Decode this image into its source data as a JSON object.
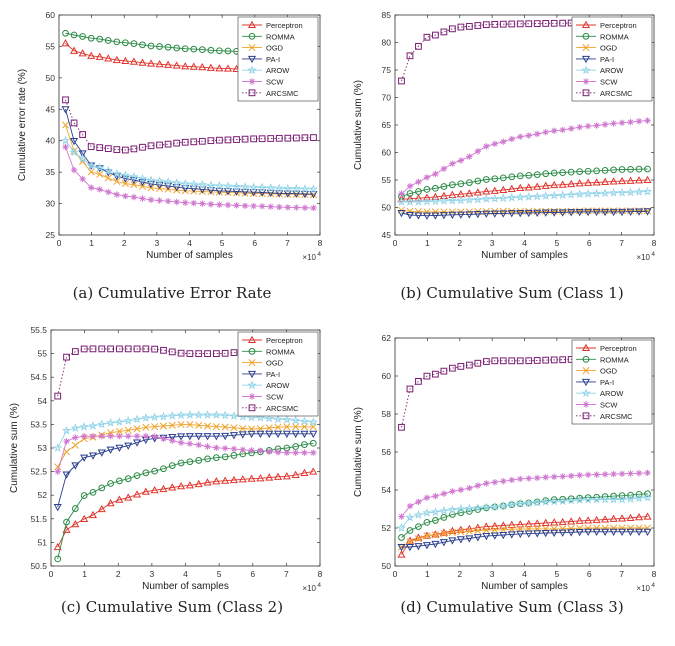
{
  "legend_labels": [
    "Perceptron",
    "ROMMA",
    "OGD",
    "PA-I",
    "AROW",
    "SCW",
    "ARCSMC"
  ],
  "series_colors": {
    "Perceptron": "#e0342c",
    "ROMMA": "#2a8a45",
    "OGD": "#f0a22a",
    "PA-I": "#2a3e8e",
    "AROW": "#8fd3e8",
    "SCW": "#d078d0",
    "ARCSMC": "#7a1e72"
  },
  "chart_data": [
    {
      "type": "line",
      "caption": "(a) Cumulative Error Rate",
      "xlabel": "Number of samples",
      "ylabel": "Cumulative error rate (%)",
      "x_exponent": "×10",
      "x_exponent_power": "4",
      "xlim": [
        0,
        8
      ],
      "ylim": [
        25,
        60
      ],
      "xticks": [
        0,
        1,
        2,
        3,
        4,
        5,
        6,
        7,
        8
      ],
      "yticks": [
        25,
        30,
        35,
        40,
        45,
        50,
        55,
        60
      ],
      "legend_position": "top-right",
      "series": [
        {
          "name": "Perceptron",
          "x": [
            0.2,
            0.5,
            1,
            2,
            3,
            4,
            5,
            6,
            7,
            7.8
          ],
          "values": [
            55.5,
            54.2,
            53.5,
            52.7,
            52.2,
            51.8,
            51.5,
            51.3,
            51.1,
            51.0
          ]
        },
        {
          "name": "ROMMA",
          "x": [
            0.2,
            0.5,
            1,
            2,
            3,
            4,
            5,
            6,
            7,
            7.8
          ],
          "values": [
            57.1,
            56.8,
            56.3,
            55.6,
            55.0,
            54.6,
            54.3,
            54.1,
            53.9,
            53.8
          ]
        },
        {
          "name": "OGD",
          "x": [
            0.2,
            0.5,
            1,
            2,
            3,
            4,
            5,
            6,
            7,
            7.8
          ],
          "values": [
            42.5,
            38.0,
            35.0,
            33.2,
            32.4,
            32.0,
            31.8,
            31.6,
            31.5,
            31.4
          ]
        },
        {
          "name": "PA-I",
          "x": [
            0.2,
            0.5,
            1,
            2,
            3,
            4,
            5,
            6,
            7,
            7.8
          ],
          "values": [
            45.0,
            39.5,
            36.0,
            34.0,
            33.0,
            32.4,
            32.0,
            31.8,
            31.6,
            31.5
          ]
        },
        {
          "name": "AROW",
          "x": [
            0.2,
            0.5,
            1,
            2,
            3,
            4,
            5,
            6,
            7,
            7.8
          ],
          "values": [
            40.0,
            38.0,
            36.0,
            34.5,
            33.6,
            33.1,
            32.8,
            32.6,
            32.4,
            32.3
          ]
        },
        {
          "name": "SCW",
          "x": [
            0.2,
            0.5,
            1,
            2,
            3,
            4,
            5,
            6,
            7,
            7.8
          ],
          "values": [
            39.0,
            35.0,
            32.5,
            31.2,
            30.5,
            30.1,
            29.8,
            29.6,
            29.4,
            29.3
          ]
        },
        {
          "name": "ARCSMC",
          "x": [
            0.2,
            0.5,
            1,
            2,
            3,
            4,
            5,
            6,
            7,
            7.8
          ],
          "values": [
            46.5,
            42.5,
            39.0,
            38.5,
            39.3,
            39.8,
            40.1,
            40.3,
            40.4,
            40.5
          ]
        }
      ]
    },
    {
      "type": "line",
      "caption": "(b) Cumulative Sum (Class 1)",
      "xlabel": "Number of samples",
      "ylabel": "Cumulative sum (%)",
      "x_exponent": "×10",
      "x_exponent_power": "4",
      "xlim": [
        0,
        8
      ],
      "ylim": [
        45,
        85
      ],
      "xticks": [
        0,
        1,
        2,
        3,
        4,
        5,
        6,
        7,
        8
      ],
      "yticks": [
        45,
        50,
        55,
        60,
        65,
        70,
        75,
        80,
        85
      ],
      "legend_position": "top-right",
      "series": [
        {
          "name": "Perceptron",
          "x": [
            0.2,
            0.5,
            1,
            2,
            3,
            4,
            5,
            6,
            7,
            7.8
          ],
          "values": [
            51.5,
            51.6,
            51.8,
            52.4,
            53.0,
            53.6,
            54.1,
            54.5,
            54.8,
            55.0
          ]
        },
        {
          "name": "ROMMA",
          "x": [
            0.2,
            0.5,
            1,
            2,
            3,
            4,
            5,
            6,
            7,
            7.8
          ],
          "values": [
            52.0,
            52.6,
            53.3,
            54.3,
            55.2,
            55.8,
            56.3,
            56.6,
            56.9,
            57.0
          ]
        },
        {
          "name": "OGD",
          "x": [
            0.2,
            0.5,
            1,
            2,
            3,
            4,
            5,
            6,
            7,
            7.8
          ],
          "values": [
            49.5,
            49.3,
            49.2,
            49.2,
            49.3,
            49.3,
            49.3,
            49.4,
            49.4,
            49.4
          ]
        },
        {
          "name": "PA-I",
          "x": [
            0.2,
            0.5,
            1,
            2,
            3,
            4,
            5,
            6,
            7,
            7.8
          ],
          "values": [
            49.0,
            48.6,
            48.5,
            48.7,
            48.9,
            49.0,
            49.1,
            49.2,
            49.2,
            49.3
          ]
        },
        {
          "name": "AROW",
          "x": [
            0.2,
            0.5,
            1,
            2,
            3,
            4,
            5,
            6,
            7,
            7.8
          ],
          "values": [
            51.0,
            51.0,
            51.1,
            51.3,
            51.6,
            51.9,
            52.2,
            52.5,
            52.7,
            52.9
          ]
        },
        {
          "name": "SCW",
          "x": [
            0.2,
            0.5,
            1,
            2,
            3,
            4,
            5,
            6,
            7,
            7.8
          ],
          "values": [
            52.5,
            54.0,
            55.5,
            58.5,
            61.5,
            63.0,
            64.0,
            64.8,
            65.4,
            65.8
          ]
        },
        {
          "name": "ARCSMC",
          "x": [
            0.2,
            0.5,
            1,
            2,
            3,
            4,
            5,
            6,
            7,
            7.8
          ],
          "values": [
            73.0,
            78.0,
            81.0,
            82.8,
            83.3,
            83.4,
            83.5,
            83.6,
            83.7,
            83.8
          ]
        }
      ]
    },
    {
      "type": "line",
      "caption": "(c) Cumulative Sum (Class 2)",
      "xlabel": "Number of samples",
      "ylabel": "Cumulative sum (%)",
      "x_exponent": "×10",
      "x_exponent_power": "4",
      "xlim": [
        0,
        8
      ],
      "ylim": [
        50.5,
        55.5
      ],
      "xticks": [
        0,
        1,
        2,
        3,
        4,
        5,
        6,
        7,
        8
      ],
      "yticks": [
        50.5,
        51,
        51.5,
        52,
        52.5,
        53,
        53.5,
        54,
        54.5,
        55,
        55.5
      ],
      "legend_position": "top-right",
      "series": [
        {
          "name": "Perceptron",
          "x": [
            0.2,
            0.5,
            1,
            2,
            3,
            4,
            5,
            6,
            7,
            7.8
          ],
          "values": [
            50.9,
            51.3,
            51.5,
            51.9,
            52.1,
            52.2,
            52.3,
            52.35,
            52.4,
            52.5
          ]
        },
        {
          "name": "ROMMA",
          "x": [
            0.2,
            0.5,
            1,
            2,
            3,
            4,
            5,
            6,
            7,
            7.8
          ],
          "values": [
            50.65,
            51.5,
            52.0,
            52.3,
            52.5,
            52.7,
            52.8,
            52.9,
            53.0,
            53.1
          ]
        },
        {
          "name": "OGD",
          "x": [
            0.2,
            0.5,
            1,
            2,
            3,
            4,
            5,
            6,
            7,
            7.8
          ],
          "values": [
            52.6,
            52.95,
            53.2,
            53.35,
            53.45,
            53.5,
            53.45,
            53.4,
            53.45,
            53.45
          ]
        },
        {
          "name": "PA-I",
          "x": [
            0.2,
            0.5,
            1,
            2,
            3,
            4,
            5,
            6,
            7,
            7.8
          ],
          "values": [
            51.75,
            52.5,
            52.8,
            53.0,
            53.2,
            53.25,
            53.25,
            53.3,
            53.3,
            53.3
          ]
        },
        {
          "name": "AROW",
          "x": [
            0.2,
            0.5,
            1,
            2,
            3,
            4,
            5,
            6,
            7,
            7.8
          ],
          "values": [
            53.0,
            53.4,
            53.45,
            53.55,
            53.65,
            53.7,
            53.7,
            53.65,
            53.6,
            53.55
          ]
        },
        {
          "name": "SCW",
          "x": [
            0.2,
            0.5,
            1,
            2,
            3,
            4,
            5,
            6,
            7,
            7.8
          ],
          "values": [
            52.5,
            53.2,
            53.25,
            53.25,
            53.25,
            53.1,
            53.0,
            52.95,
            52.9,
            52.9
          ]
        },
        {
          "name": "ARCSMC",
          "x": [
            0.2,
            0.5,
            1,
            2,
            3,
            4,
            5,
            6,
            7,
            7.8
          ],
          "values": [
            54.1,
            55.0,
            55.1,
            55.1,
            55.1,
            55.0,
            55.0,
            55.05,
            55.1,
            55.1
          ]
        }
      ]
    },
    {
      "type": "line",
      "caption": "(d) Cumulative Sum (Class 3)",
      "xlabel": "Number of samples",
      "ylabel": "Cumulative sum (%)",
      "x_exponent": "×10",
      "x_exponent_power": "4",
      "xlim": [
        0,
        8
      ],
      "ylim": [
        50,
        62
      ],
      "xticks": [
        0,
        1,
        2,
        3,
        4,
        5,
        6,
        7,
        8
      ],
      "yticks": [
        50,
        52,
        54,
        56,
        58,
        60,
        62
      ],
      "legend_position": "top-right",
      "series": [
        {
          "name": "Perceptron",
          "x": [
            0.2,
            0.5,
            1,
            2,
            3,
            4,
            5,
            6,
            7,
            7.8
          ],
          "values": [
            50.6,
            51.4,
            51.6,
            51.9,
            52.1,
            52.2,
            52.3,
            52.4,
            52.5,
            52.6
          ]
        },
        {
          "name": "ROMMA",
          "x": [
            0.2,
            0.5,
            1,
            2,
            3,
            4,
            5,
            6,
            7,
            7.8
          ],
          "values": [
            51.5,
            51.9,
            52.3,
            52.8,
            53.1,
            53.3,
            53.5,
            53.6,
            53.7,
            53.8
          ]
        },
        {
          "name": "OGD",
          "x": [
            0.2,
            0.5,
            1,
            2,
            3,
            4,
            5,
            6,
            7,
            7.8
          ],
          "values": [
            51.0,
            51.3,
            51.6,
            51.8,
            51.9,
            51.95,
            51.95,
            52.0,
            52.0,
            52.0
          ]
        },
        {
          "name": "PA-I",
          "x": [
            0.2,
            0.5,
            1,
            2,
            3,
            4,
            5,
            6,
            7,
            7.8
          ],
          "values": [
            51.0,
            51.0,
            51.1,
            51.4,
            51.6,
            51.7,
            51.75,
            51.8,
            51.8,
            51.8
          ]
        },
        {
          "name": "AROW",
          "x": [
            0.2,
            0.5,
            1,
            2,
            3,
            4,
            5,
            6,
            7,
            7.8
          ],
          "values": [
            52.0,
            52.6,
            52.8,
            53.0,
            53.1,
            53.3,
            53.4,
            53.5,
            53.5,
            53.6
          ]
        },
        {
          "name": "SCW",
          "x": [
            0.2,
            0.5,
            1,
            2,
            3,
            4,
            5,
            6,
            7,
            7.8
          ],
          "values": [
            52.6,
            53.2,
            53.6,
            54.0,
            54.4,
            54.6,
            54.7,
            54.8,
            54.85,
            54.9
          ]
        },
        {
          "name": "ARCSMC",
          "x": [
            0.2,
            0.5,
            1,
            2,
            3,
            4,
            5,
            6,
            7,
            7.8
          ],
          "values": [
            57.3,
            59.5,
            60.0,
            60.5,
            60.8,
            60.8,
            60.85,
            60.9,
            60.9,
            61.0
          ]
        }
      ]
    }
  ]
}
